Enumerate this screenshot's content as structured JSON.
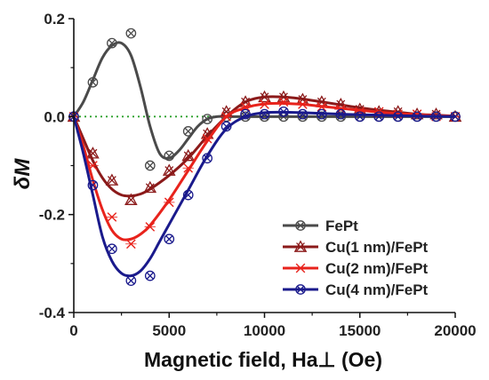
{
  "chart_data": {
    "type": "line",
    "xlabel": "Magnetic field, Ha⊥ (Oe)",
    "ylabel": "δM",
    "xlim": [
      0,
      20000
    ],
    "ylim": [
      -0.4,
      0.2
    ],
    "x_ticks": [
      0,
      5000,
      10000,
      15000,
      20000
    ],
    "y_ticks": [
      -0.4,
      -0.2,
      0.0,
      0.2
    ],
    "x_tick_labels": [
      "0",
      "5000",
      "10000",
      "15000",
      "20000"
    ],
    "y_tick_labels": [
      "-0.4",
      "-0.2",
      "0.0",
      "0.2"
    ],
    "reference_line": {
      "y": 0,
      "style": "dotted",
      "color": "#2ca02c"
    },
    "legend_position": "lower-right",
    "series": [
      {
        "name": "FePt",
        "color": "#4a4a4a",
        "marker": "circle-x",
        "points_x": [
          0,
          1000,
          2000,
          3000,
          4000,
          5000,
          6000,
          7000,
          8000,
          9000,
          10000,
          11000,
          12000,
          13000,
          14000,
          15000,
          16000,
          17000,
          18000,
          19000,
          20000
        ],
        "points_y": [
          0.0,
          0.07,
          0.15,
          0.17,
          -0.1,
          -0.08,
          -0.03,
          -0.005,
          0.0,
          0.0,
          0.0,
          0.0,
          0.0,
          0.0,
          0.0,
          0.0,
          0.0,
          0.0,
          0.0,
          0.0,
          0.0
        ],
        "curve_x": [
          0,
          500,
          1000,
          1500,
          2000,
          2500,
          3000,
          3500,
          4000,
          4500,
          5000,
          5500,
          6000,
          6500,
          7000,
          7500,
          8000,
          9000,
          10000,
          12000,
          14000,
          16000,
          18000,
          20000
        ],
        "curve_y": [
          0.0,
          0.03,
          0.075,
          0.12,
          0.145,
          0.15,
          0.125,
          0.06,
          -0.02,
          -0.075,
          -0.085,
          -0.07,
          -0.045,
          -0.02,
          -0.005,
          0.0,
          0.0,
          0.0,
          0.0,
          0.0,
          0.0,
          0.0,
          0.0,
          0.0
        ]
      },
      {
        "name": "Cu(1 nm)/FePt",
        "color": "#8b1a1a",
        "marker": "triangle-x",
        "points_x": [
          0,
          1000,
          2000,
          3000,
          4000,
          5000,
          6000,
          7000,
          8000,
          9000,
          10000,
          11000,
          12000,
          13000,
          14000,
          15000,
          16000,
          17000,
          18000,
          19000,
          20000
        ],
        "points_y": [
          0.0,
          -0.075,
          -0.13,
          -0.17,
          -0.145,
          -0.11,
          -0.08,
          -0.035,
          0.01,
          0.03,
          0.04,
          0.04,
          0.035,
          0.03,
          0.025,
          0.015,
          0.01,
          0.01,
          0.005,
          0.005,
          0.0
        ],
        "curve_x": [
          0,
          500,
          1000,
          1500,
          2000,
          2500,
          3000,
          3500,
          4000,
          5000,
          6000,
          7000,
          8000,
          9000,
          10000,
          11000,
          12000,
          13000,
          14000,
          15000,
          16000,
          17000,
          18000,
          19000,
          20000
        ],
        "curve_y": [
          0.0,
          -0.045,
          -0.09,
          -0.125,
          -0.148,
          -0.16,
          -0.162,
          -0.158,
          -0.148,
          -0.12,
          -0.085,
          -0.04,
          0.0,
          0.03,
          0.04,
          0.04,
          0.036,
          0.03,
          0.024,
          0.018,
          0.013,
          0.009,
          0.005,
          0.003,
          0.001
        ]
      },
      {
        "name": "Cu(2 nm)/FePt",
        "color": "#e8231c",
        "marker": "x",
        "points_x": [
          0,
          1000,
          2000,
          3000,
          4000,
          5000,
          6000,
          7000,
          8000,
          9000,
          10000,
          11000,
          12000,
          13000,
          14000,
          15000,
          16000,
          17000,
          18000,
          19000,
          20000
        ],
        "points_y": [
          0.0,
          -0.1,
          -0.205,
          -0.26,
          -0.225,
          -0.175,
          -0.105,
          -0.045,
          0.0,
          0.02,
          0.025,
          0.03,
          0.025,
          0.02,
          0.015,
          0.01,
          0.01,
          0.005,
          0.005,
          0.0,
          0.0
        ],
        "curve_x": [
          0,
          500,
          1000,
          1500,
          2000,
          2500,
          3000,
          3500,
          4000,
          5000,
          6000,
          7000,
          8000,
          9000,
          10000,
          11000,
          12000,
          13000,
          14000,
          15000,
          16000,
          17000,
          18000,
          19000,
          20000
        ],
        "curve_y": [
          0.0,
          -0.06,
          -0.13,
          -0.19,
          -0.232,
          -0.25,
          -0.25,
          -0.24,
          -0.222,
          -0.17,
          -0.11,
          -0.05,
          0.0,
          0.018,
          0.026,
          0.027,
          0.025,
          0.021,
          0.017,
          0.013,
          0.009,
          0.006,
          0.004,
          0.002,
          0.001
        ]
      },
      {
        "name": "Cu(4 nm)/FePt",
        "color": "#1a1a8c",
        "marker": "circle-x",
        "points_x": [
          0,
          1000,
          2000,
          3000,
          4000,
          5000,
          6000,
          7000,
          8000,
          9000,
          10000,
          11000,
          12000,
          13000,
          14000,
          15000,
          16000,
          17000,
          18000,
          19000,
          20000
        ],
        "points_y": [
          0.0,
          -0.14,
          -0.27,
          -0.335,
          -0.325,
          -0.25,
          -0.16,
          -0.085,
          -0.02,
          0.005,
          0.005,
          0.01,
          0.005,
          0.005,
          0.005,
          0.0,
          0.0,
          0.0,
          0.0,
          0.0,
          0.0
        ],
        "curve_x": [
          0,
          500,
          1000,
          1500,
          2000,
          2500,
          3000,
          3500,
          4000,
          4500,
          5000,
          6000,
          7000,
          8000,
          9000,
          10000,
          11000,
          12000,
          14000,
          16000,
          18000,
          20000
        ],
        "curve_y": [
          0.0,
          -0.075,
          -0.16,
          -0.245,
          -0.295,
          -0.32,
          -0.325,
          -0.315,
          -0.29,
          -0.255,
          -0.22,
          -0.15,
          -0.08,
          -0.025,
          0.0,
          0.008,
          0.009,
          0.008,
          0.005,
          0.003,
          0.001,
          0.0
        ]
      }
    ]
  }
}
